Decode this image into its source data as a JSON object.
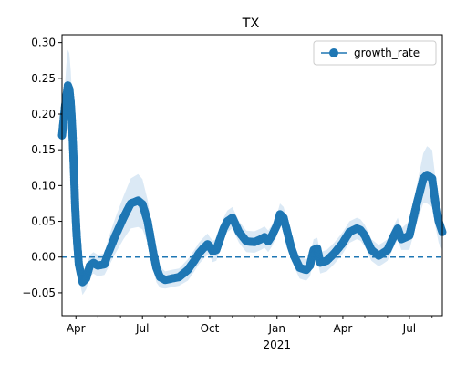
{
  "chart_data": {
    "type": "line",
    "title": "TX",
    "xlabel": "",
    "ylabel": "",
    "x_range": [
      "2020-03-13",
      "2021-08-15"
    ],
    "ylim": [
      -0.082,
      0.311
    ],
    "y_ticks": [
      -0.05,
      0.0,
      0.05,
      0.1,
      0.15,
      0.2,
      0.25,
      0.3
    ],
    "y_tick_labels": [
      "−0.05",
      "0.00",
      "0.05",
      "0.10",
      "0.15",
      "0.20",
      "0.25",
      "0.30"
    ],
    "x_major_ticks": [
      {
        "date": "2020-04-01",
        "label": "Apr"
      },
      {
        "date": "2020-07-01",
        "label": "Jul"
      },
      {
        "date": "2020-10-01",
        "label": "Oct"
      },
      {
        "date": "2021-01-01",
        "label": "Jan"
      },
      {
        "date": "2021-04-01",
        "label": "Apr"
      },
      {
        "date": "2021-07-01",
        "label": "Jul"
      }
    ],
    "x_minor_ticks": [
      "2020-05-01",
      "2020-06-01",
      "2020-08-01",
      "2020-09-01",
      "2020-11-01",
      "2020-12-01",
      "2021-02-01",
      "2021-03-01",
      "2021-05-01",
      "2021-06-01",
      "2021-08-01"
    ],
    "year_label": {
      "date": "2021-01-01",
      "label": "2021"
    },
    "grid": false,
    "legend": {
      "position": "top-right",
      "entries": [
        "growth_rate"
      ]
    },
    "reference_line": {
      "y": 0.0,
      "style": "dashed"
    },
    "color": "#1f77b4",
    "band_color": "#dbe9f5",
    "series": [
      {
        "name": "growth_rate",
        "x": [
          "2020-03-13",
          "2020-03-15",
          "2020-03-17",
          "2020-03-19",
          "2020-03-21",
          "2020-03-23",
          "2020-03-25",
          "2020-03-27",
          "2020-03-29",
          "2020-03-31",
          "2020-04-02",
          "2020-04-05",
          "2020-04-10",
          "2020-04-15",
          "2020-04-20",
          "2020-04-25",
          "2020-05-01",
          "2020-05-10",
          "2020-05-15",
          "2020-05-25",
          "2020-06-05",
          "2020-06-15",
          "2020-06-25",
          "2020-07-01",
          "2020-07-08",
          "2020-07-15",
          "2020-07-20",
          "2020-07-25",
          "2020-08-01",
          "2020-08-10",
          "2020-08-20",
          "2020-09-01",
          "2020-09-10",
          "2020-09-16",
          "2020-09-22",
          "2020-09-28",
          "2020-10-01",
          "2020-10-05",
          "2020-10-10",
          "2020-10-15",
          "2020-10-20",
          "2020-10-25",
          "2020-11-01",
          "2020-11-10",
          "2020-11-20",
          "2020-12-01",
          "2020-12-10",
          "2020-12-15",
          "2020-12-20",
          "2020-12-25",
          "2021-01-01",
          "2021-01-05",
          "2021-01-10",
          "2021-01-15",
          "2021-01-20",
          "2021-01-25",
          "2021-02-01",
          "2021-02-10",
          "2021-02-15",
          "2021-02-20",
          "2021-02-25",
          "2021-03-01",
          "2021-03-10",
          "2021-03-20",
          "2021-04-01",
          "2021-04-10",
          "2021-04-20",
          "2021-04-25",
          "2021-05-01",
          "2021-05-10",
          "2021-05-20",
          "2021-05-25",
          "2021-06-01",
          "2021-06-10",
          "2021-06-15",
          "2021-06-20",
          "2021-07-01",
          "2021-07-10",
          "2021-07-15",
          "2021-07-20",
          "2021-07-25",
          "2021-08-01",
          "2021-08-05",
          "2021-08-10",
          "2021-08-15"
        ],
        "y": [
          0.17,
          0.19,
          0.21,
          0.225,
          0.24,
          0.235,
          0.215,
          0.18,
          0.13,
          0.07,
          0.03,
          -0.01,
          -0.035,
          -0.03,
          -0.012,
          -0.008,
          -0.012,
          -0.01,
          0.005,
          0.03,
          0.055,
          0.075,
          0.079,
          0.074,
          0.05,
          0.01,
          -0.015,
          -0.028,
          -0.032,
          -0.03,
          -0.028,
          -0.018,
          -0.005,
          0.005,
          0.012,
          0.018,
          0.015,
          0.008,
          0.01,
          0.025,
          0.04,
          0.05,
          0.055,
          0.035,
          0.022,
          0.021,
          0.025,
          0.028,
          0.022,
          0.03,
          0.045,
          0.06,
          0.055,
          0.035,
          0.015,
          0.0,
          -0.015,
          -0.018,
          -0.012,
          0.01,
          0.012,
          -0.008,
          -0.005,
          0.005,
          0.02,
          0.035,
          0.04,
          0.038,
          0.03,
          0.01,
          0.002,
          0.005,
          0.01,
          0.03,
          0.04,
          0.025,
          0.03,
          0.07,
          0.09,
          0.11,
          0.115,
          0.11,
          0.08,
          0.05,
          0.035
        ],
        "band_half_width": [
          0.015,
          0.02,
          0.03,
          0.045,
          0.05,
          0.05,
          0.045,
          0.04,
          0.035,
          0.03,
          0.025,
          0.02,
          0.018,
          0.015,
          0.015,
          0.015,
          0.015,
          0.015,
          0.02,
          0.025,
          0.03,
          0.035,
          0.037,
          0.035,
          0.03,
          0.025,
          0.02,
          0.015,
          0.012,
          0.012,
          0.012,
          0.015,
          0.015,
          0.015,
          0.015,
          0.015,
          0.013,
          0.015,
          0.015,
          0.015,
          0.015,
          0.015,
          0.015,
          0.015,
          0.015,
          0.015,
          0.015,
          0.015,
          0.015,
          0.015,
          0.015,
          0.015,
          0.015,
          0.015,
          0.015,
          0.015,
          0.015,
          0.015,
          0.015,
          0.015,
          0.015,
          0.015,
          0.015,
          0.015,
          0.015,
          0.015,
          0.015,
          0.015,
          0.015,
          0.015,
          0.015,
          0.015,
          0.015,
          0.015,
          0.015,
          0.015,
          0.02,
          0.025,
          0.03,
          0.035,
          0.04,
          0.04,
          0.035,
          0.03,
          0.025
        ]
      }
    ]
  }
}
